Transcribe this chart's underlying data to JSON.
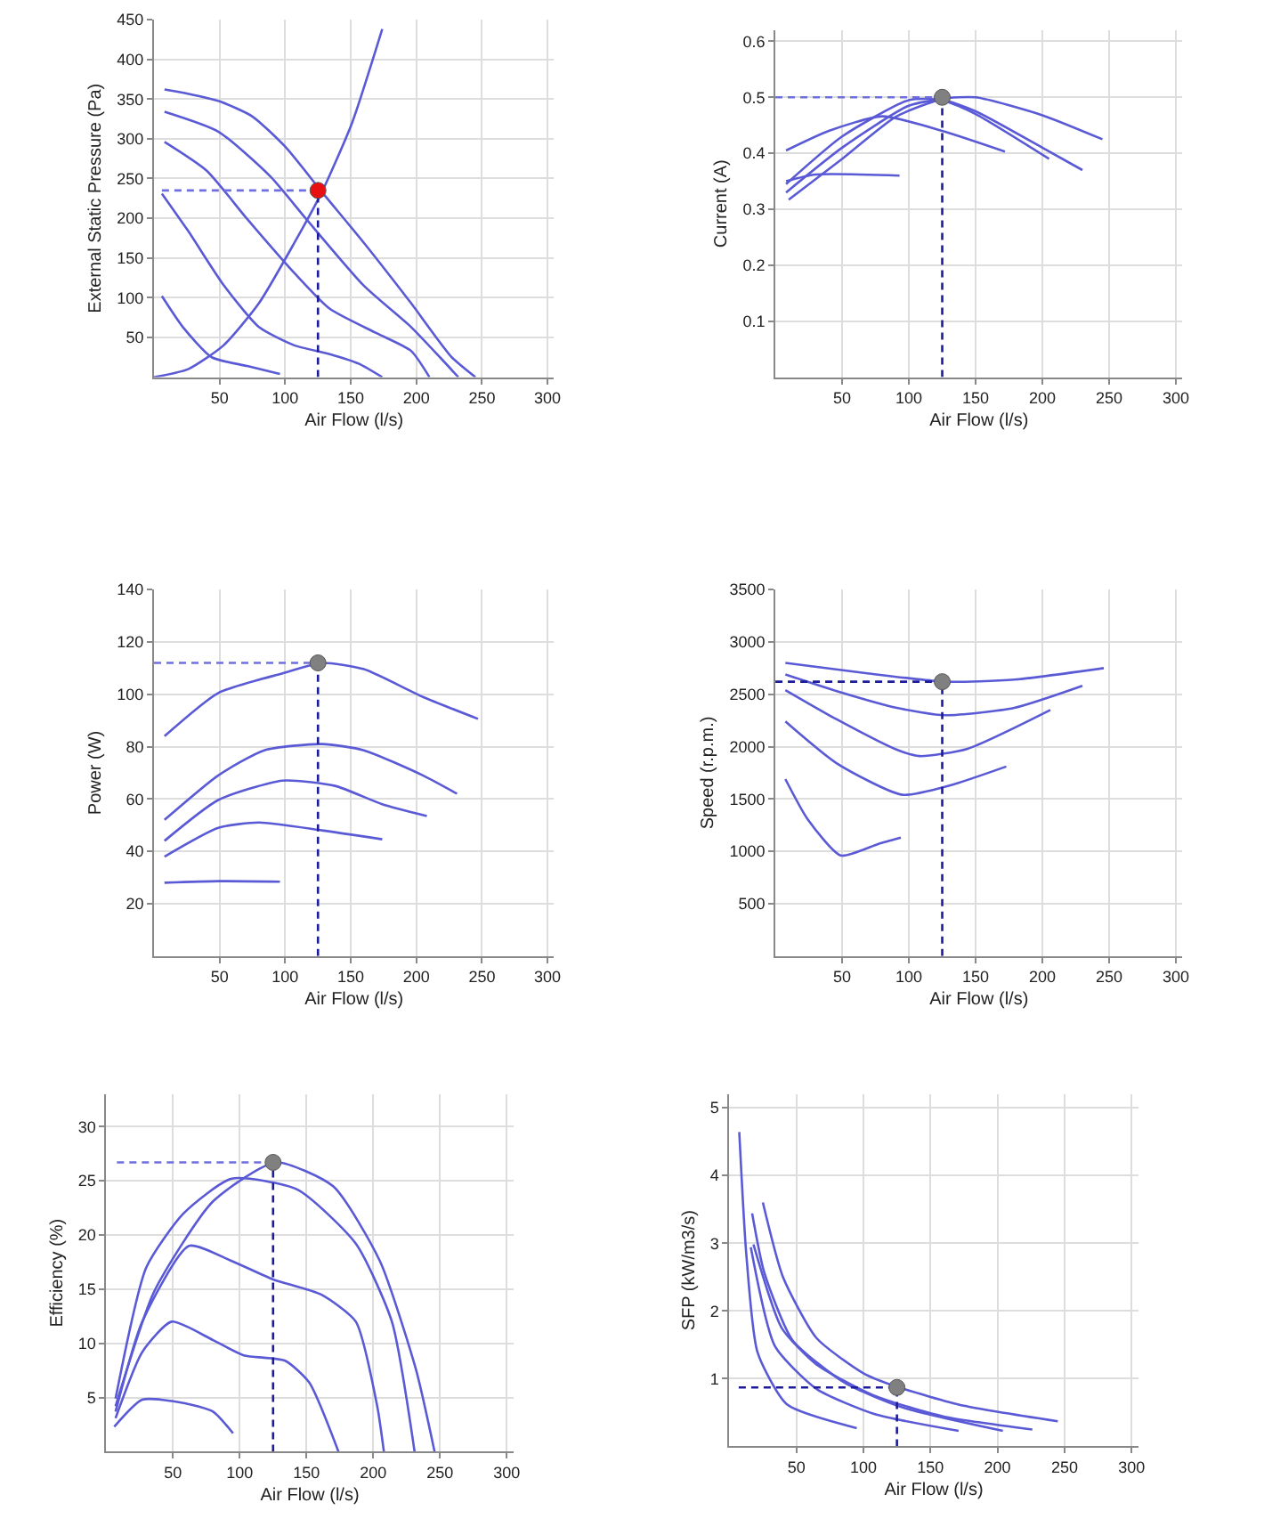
{
  "chart_data": [
    {
      "type": "line",
      "xlabel": "Air Flow (l/s)",
      "ylabel": "External Static Pressure (Pa)",
      "xlim": [
        0,
        305
      ],
      "xticks": [
        50,
        100,
        150,
        200,
        250,
        300
      ],
      "ylim": [
        0,
        450
      ],
      "yticks": [
        50,
        100,
        150,
        200,
        250,
        300,
        350,
        400,
        450
      ],
      "grid": true,
      "marker": "none",
      "series": [
        {
          "color": "#5a5ad6",
          "x": [
            8,
            25,
            50,
            75,
            100,
            128,
            160,
            196,
            227,
            245
          ],
          "values": [
            362,
            357,
            347,
            328,
            290,
            233,
            169,
            93,
            25,
            0
          ]
        },
        {
          "color": "#5a5ad6",
          "x": [
            8,
            49,
            89,
            116,
            160,
            196,
            218,
            232
          ],
          "values": [
            334,
            309,
            252,
            199,
            115,
            63,
            25,
            0
          ]
        },
        {
          "color": "#5a5ad6",
          "x": [
            8,
            40,
            71,
            107,
            134,
            170,
            196,
            210
          ],
          "values": [
            296,
            260,
            199,
            131,
            86,
            55,
            33,
            0
          ]
        },
        {
          "color": "#5a5ad6",
          "x": [
            6,
            26,
            53,
            80,
            107,
            134,
            156,
            174
          ],
          "values": [
            231,
            184,
            116,
            63,
            40,
            29,
            17,
            0
          ]
        },
        {
          "color": "#5a5ad6",
          "x": [
            6,
            22,
            44,
            71,
            96
          ],
          "values": [
            102,
            63,
            25,
            14,
            4
          ]
        },
        {
          "color": "#5a5ad6",
          "x": [
            0,
            26,
            53,
            80,
            107,
            128,
            151,
            174
          ],
          "values": [
            0,
            10,
            40,
            93,
            169,
            233,
            320,
            438
          ]
        },
        {
          "color": "#6f6fdd",
          "line_style": "dashed",
          "x": [
            6,
            125
          ],
          "values": [
            235,
            235
          ]
        },
        {
          "color": "#1c1c9a",
          "line_style": "dashed",
          "x": [
            125,
            125
          ],
          "values": [
            0,
            235
          ]
        },
        {
          "type": "scatter",
          "marker": "circle",
          "color": "#e81010",
          "x": [
            125
          ],
          "values": [
            235
          ]
        }
      ]
    },
    {
      "type": "line",
      "xlabel": "Air Flow (l/s)",
      "ylabel": "Current (A)",
      "xlim": [
        0,
        305
      ],
      "xticks": [
        50,
        100,
        150,
        200,
        250,
        300
      ],
      "ylim": [
        0,
        0.62
      ],
      "yticks": [
        0.1,
        0.2,
        0.3,
        0.4,
        0.5,
        0.6
      ],
      "grid": true,
      "marker": "none",
      "series": [
        {
          "color": "#5a5ad6",
          "x": [
            10,
            50,
            90,
            125,
            150,
            200,
            245
          ],
          "values": [
            0.317,
            0.39,
            0.465,
            0.497,
            0.5,
            0.468,
            0.425
          ]
        },
        {
          "color": "#5a5ad6",
          "x": [
            8,
            50,
            100,
            125,
            150,
            200,
            230
          ],
          "values": [
            0.33,
            0.41,
            0.485,
            0.495,
            0.475,
            0.41,
            0.37
          ]
        },
        {
          "color": "#5a5ad6",
          "x": [
            8,
            50,
            100,
            125,
            150,
            205
          ],
          "values": [
            0.345,
            0.43,
            0.495,
            0.495,
            0.47,
            0.39
          ]
        },
        {
          "color": "#5a5ad6",
          "x": [
            8,
            40,
            80,
            125,
            172
          ],
          "values": [
            0.405,
            0.44,
            0.466,
            0.44,
            0.403
          ]
        },
        {
          "color": "#5a5ad6",
          "x": [
            8,
            30,
            93
          ],
          "values": [
            0.35,
            0.362,
            0.36
          ]
        },
        {
          "color": "#6f6fdd",
          "line_style": "dashed",
          "x": [
            0,
            125
          ],
          "values": [
            0.5,
            0.5
          ]
        },
        {
          "color": "#1c1c9a",
          "line_style": "dashed",
          "x": [
            125,
            125
          ],
          "values": [
            0,
            0.5
          ]
        },
        {
          "type": "scatter",
          "marker": "circle",
          "color": "#808080",
          "x": [
            125
          ],
          "values": [
            0.5
          ]
        }
      ]
    },
    {
      "type": "line",
      "xlabel": "Air Flow (l/s)",
      "ylabel": "Power (W)",
      "xlim": [
        0,
        305
      ],
      "xticks": [
        50,
        100,
        150,
        200,
        250,
        300
      ],
      "ylim": [
        0,
        140
      ],
      "yticks": [
        20,
        40,
        60,
        80,
        100,
        120,
        140
      ],
      "grid": true,
      "marker": "none",
      "series": [
        {
          "color": "#5a5ad6",
          "x": [
            8,
            49,
            98,
            128,
            160,
            205,
            247
          ],
          "values": [
            84,
            100.5,
            108,
            112,
            109.6,
            99,
            90.6
          ]
        },
        {
          "color": "#5a5ad6",
          "x": [
            8,
            49,
            84,
            128,
            160,
            205,
            231
          ],
          "values": [
            52,
            69,
            78.6,
            81,
            78.6,
            69,
            62
          ]
        },
        {
          "color": "#5a5ad6",
          "x": [
            8,
            49,
            98,
            138,
            174,
            208
          ],
          "values": [
            44,
            59.6,
            67,
            65,
            58,
            53.5
          ]
        },
        {
          "color": "#5a5ad6",
          "x": [
            8,
            49,
            80,
            128,
            174
          ],
          "values": [
            38,
            49,
            51,
            48,
            44.6
          ]
        },
        {
          "color": "#5a5ad6",
          "x": [
            8,
            49,
            96
          ],
          "values": [
            28,
            28.6,
            28.4
          ]
        },
        {
          "color": "#6f6fdd",
          "line_style": "dashed",
          "x": [
            0,
            125
          ],
          "values": [
            112,
            112
          ]
        },
        {
          "color": "#1c1c9a",
          "line_style": "dashed",
          "x": [
            125,
            125
          ],
          "values": [
            0,
            112
          ]
        },
        {
          "type": "scatter",
          "marker": "circle",
          "color": "#808080",
          "x": [
            125
          ],
          "values": [
            112
          ]
        }
      ]
    },
    {
      "type": "line",
      "xlabel": "Air Flow (l/s)",
      "ylabel": "Speed (r.p.m.)",
      "xlim": [
        0,
        305
      ],
      "xticks": [
        50,
        100,
        150,
        200,
        250,
        300
      ],
      "ylim": [
        0,
        3500
      ],
      "yticks": [
        500,
        1000,
        1500,
        2000,
        2500,
        3000,
        3500
      ],
      "grid": true,
      "marker": "none",
      "series": [
        {
          "color": "#5a5ad6",
          "x": [
            7.5,
            69,
            127,
            179,
            246
          ],
          "values": [
            2800,
            2700,
            2620,
            2640,
            2750
          ]
        },
        {
          "color": "#5a5ad6",
          "x": [
            7.5,
            46,
            91,
            127,
            179,
            230
          ],
          "values": [
            2690,
            2530,
            2370,
            2300,
            2370,
            2580
          ]
        },
        {
          "color": "#5a5ad6",
          "x": [
            7.5,
            46,
            91,
            108,
            144,
            206
          ],
          "values": [
            2540,
            2260,
            1970,
            1910,
            1980,
            2350
          ]
        },
        {
          "color": "#5a5ad6",
          "x": [
            7.5,
            46,
            95,
            131,
            173
          ],
          "values": [
            2240,
            1840,
            1540,
            1630,
            1810
          ]
        },
        {
          "color": "#5a5ad6",
          "x": [
            7.5,
            24,
            49,
            77,
            94
          ],
          "values": [
            1690,
            1310,
            960,
            1070,
            1130
          ]
        },
        {
          "color": "#1c1c9a",
          "line_style": "dashed",
          "x": [
            0,
            125
          ],
          "values": [
            2620,
            2620
          ]
        },
        {
          "color": "#1c1c9a",
          "line_style": "dashed",
          "x": [
            125,
            125
          ],
          "values": [
            0,
            2620
          ]
        },
        {
          "type": "scatter",
          "marker": "circle",
          "color": "#808080",
          "x": [
            125
          ],
          "values": [
            2620
          ]
        }
      ]
    },
    {
      "type": "line",
      "xlabel": "Air Flow (l/s)",
      "ylabel": "Efficiency (%)",
      "xlim": [
        0,
        305
      ],
      "xticks": [
        50,
        100,
        150,
        200,
        250,
        300
      ],
      "ylim": [
        0,
        33
      ],
      "yticks": [
        5,
        10,
        15,
        20,
        25,
        30
      ],
      "grid": true,
      "marker": "none",
      "series": [
        {
          "color": "#5a5ad6",
          "x": [
            7,
            36,
            80,
            127,
            170,
            205,
            232,
            246
          ],
          "values": [
            4.2,
            14.8,
            23.1,
            26.7,
            24.5,
            17.6,
            7.6,
            0
          ]
        },
        {
          "color": "#5a5ad6",
          "x": [
            7,
            30,
            58,
            94,
            143,
            187,
            214,
            231
          ],
          "values": [
            4.9,
            17,
            22,
            25.2,
            24.2,
            19.2,
            12,
            0
          ]
        },
        {
          "color": "#5a5ad6",
          "x": [
            7,
            27,
            62,
            94,
            125,
            161,
            187,
            203,
            208
          ],
          "values": [
            3.7,
            12,
            19,
            17.6,
            15.9,
            14.5,
            12,
            4.2,
            0
          ]
        },
        {
          "color": "#5a5ad6",
          "x": [
            7,
            27,
            49,
            80,
            103,
            134,
            152,
            174
          ],
          "values": [
            3.1,
            9.2,
            12,
            10.3,
            8.9,
            8.4,
            6.4,
            0
          ]
        },
        {
          "color": "#5a5ad6",
          "x": [
            6,
            27,
            58,
            80,
            95
          ],
          "values": [
            2.3,
            4.8,
            4.5,
            3.7,
            1.7
          ]
        },
        {
          "color": "#6f6fdd",
          "line_style": "dashed",
          "x": [
            8,
            125
          ],
          "values": [
            26.7,
            26.7
          ]
        },
        {
          "color": "#1c1c9a",
          "line_style": "dashed",
          "x": [
            125,
            125
          ],
          "values": [
            0,
            26.7
          ]
        },
        {
          "type": "scatter",
          "marker": "circle",
          "color": "#808080",
          "x": [
            125
          ],
          "values": [
            26.7
          ]
        }
      ]
    },
    {
      "type": "line",
      "xlabel": "Air Flow (l/s)",
      "ylabel": "SFP (kW/m3/s)",
      "xlim": [
        0,
        305
      ],
      "xticks": [
        50,
        100,
        150,
        200,
        250,
        300
      ],
      "ylim": [
        0,
        5.2
      ],
      "yticks": [
        1,
        2,
        3,
        4,
        5
      ],
      "grid": true,
      "marker": "none",
      "series": [
        {
          "color": "#5a5ad6",
          "x": [
            7.4,
            12.6,
            21,
            43,
            95
          ],
          "values": [
            4.64,
            2.85,
            1.39,
            0.62,
            0.27
          ]
        },
        {
          "color": "#5a5ad6",
          "x": [
            16,
            34,
            65,
            108,
            171
          ],
          "values": [
            2.94,
            1.48,
            0.85,
            0.48,
            0.23
          ]
        },
        {
          "color": "#5a5ad6",
          "x": [
            17,
            26,
            47,
            86,
            130,
            204
          ],
          "values": [
            3.44,
            2.57,
            1.57,
            0.94,
            0.57,
            0.23
          ]
        },
        {
          "color": "#5a5ad6",
          "x": [
            18,
            39,
            65,
            108,
            160,
            226
          ],
          "values": [
            2.98,
            1.75,
            1.21,
            0.75,
            0.44,
            0.25
          ]
        },
        {
          "color": "#5a5ad6",
          "x": [
            25,
            40,
            65,
            100,
            125,
            175,
            245
          ],
          "values": [
            3.6,
            2.5,
            1.6,
            1.08,
            0.88,
            0.6,
            0.37
          ]
        },
        {
          "color": "#1c1c9a",
          "line_style": "dashed",
          "x": [
            7,
            125
          ],
          "values": [
            0.87,
            0.87
          ]
        },
        {
          "color": "#1c1c9a",
          "line_style": "dashed",
          "x": [
            125,
            125
          ],
          "values": [
            0,
            0.87
          ]
        },
        {
          "type": "scatter",
          "marker": "circle",
          "color": "#808080",
          "x": [
            125
          ],
          "values": [
            0.87
          ]
        }
      ]
    }
  ]
}
